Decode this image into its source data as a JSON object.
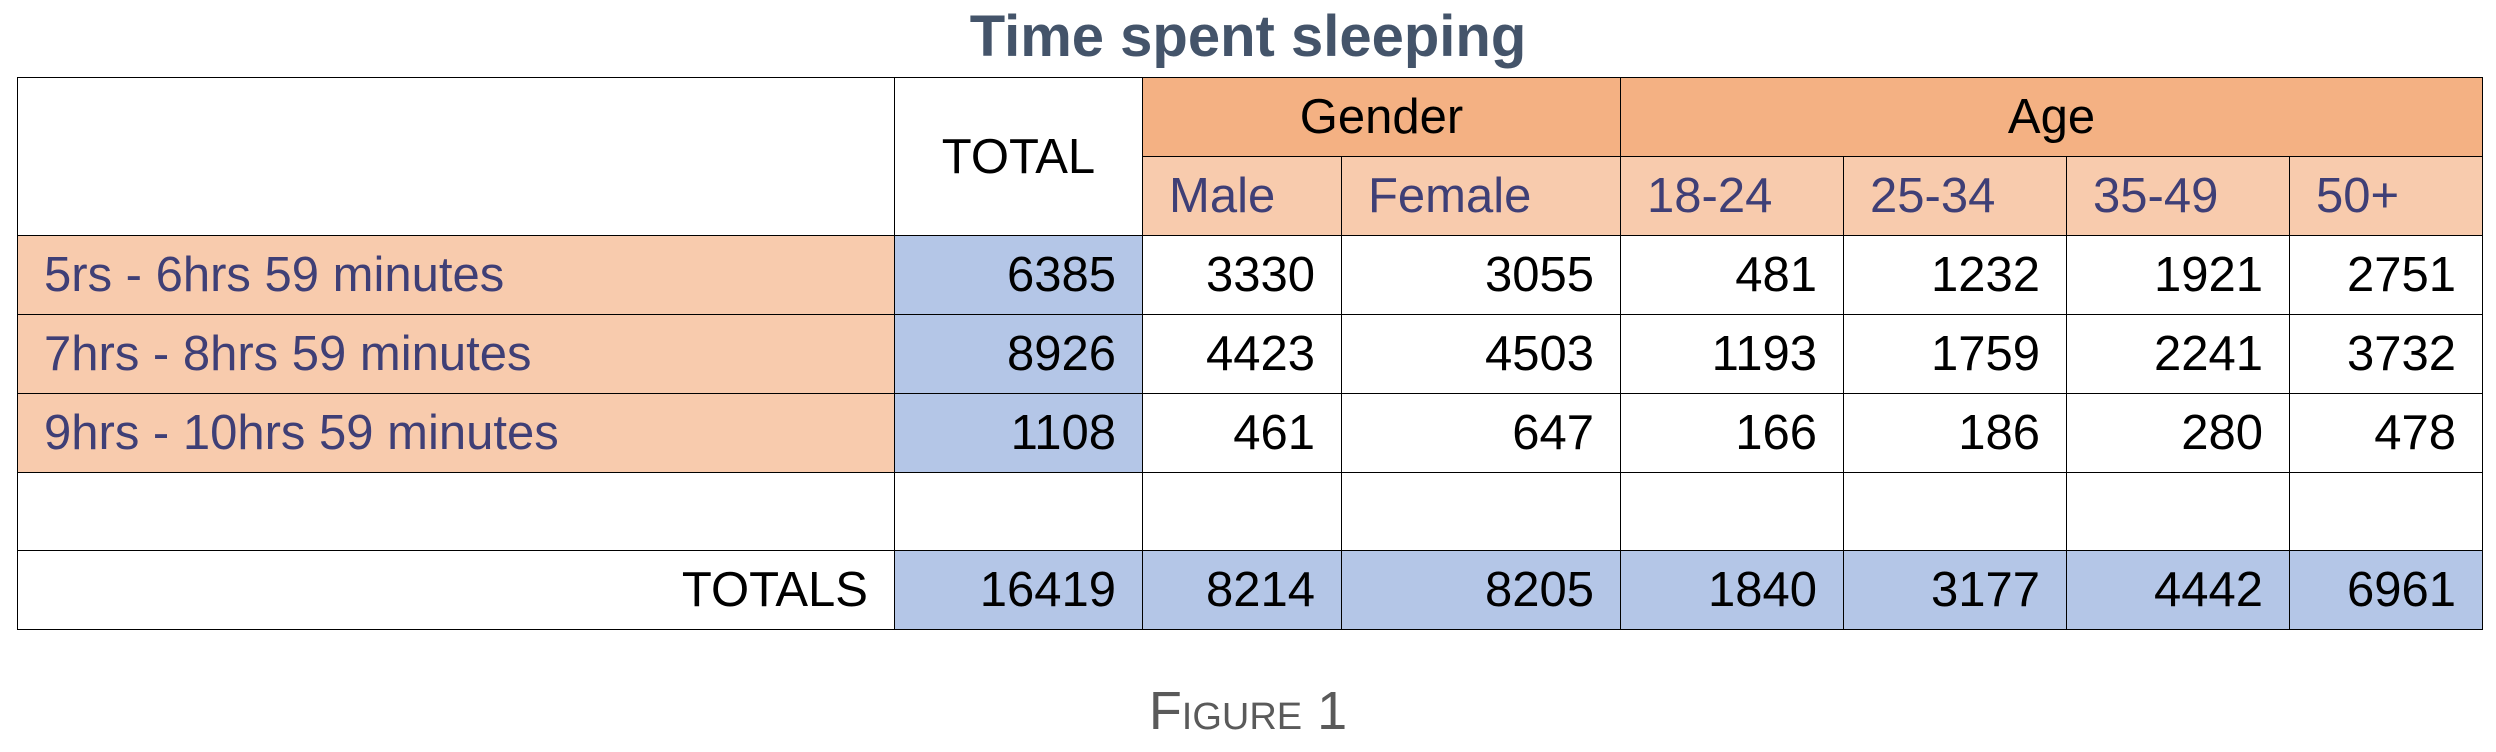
{
  "chart_data": {
    "type": "table",
    "title": "Time spent sleeping",
    "caption": "Figure 1",
    "header": {
      "total_label": "TOTAL",
      "groups": [
        {
          "label": "Gender",
          "columns": [
            "Male",
            "Female"
          ]
        },
        {
          "label": "Age",
          "columns": [
            "18-24",
            "25-34",
            "35-49",
            "50+"
          ]
        }
      ]
    },
    "rows": [
      {
        "label": "5rs - 6hrs 59 minutes",
        "total": "6385",
        "values": [
          "3330",
          "3055",
          "481",
          "1232",
          "1921",
          "2751"
        ]
      },
      {
        "label": "7hrs - 8hrs 59 minutes",
        "total": "8926",
        "values": [
          "4423",
          "4503",
          "1193",
          "1759",
          "2241",
          "3732"
        ]
      },
      {
        "label": "9hrs - 10hrs 59 minutes",
        "total": "1108",
        "values": [
          "461",
          "647",
          "166",
          "186",
          "280",
          "478"
        ]
      }
    ],
    "totals": {
      "label": "TOTALS",
      "total": "16419",
      "values": [
        "8214",
        "8205",
        "1840",
        "3177",
        "4442",
        "6961"
      ]
    },
    "colors": {
      "title": "#44546a",
      "group_header": "#f4b183",
      "sub_header": "#f8cbad",
      "row_label": "#f8cbad",
      "total_column": "#b4c6e7",
      "label_text": "#3f3f76"
    }
  }
}
